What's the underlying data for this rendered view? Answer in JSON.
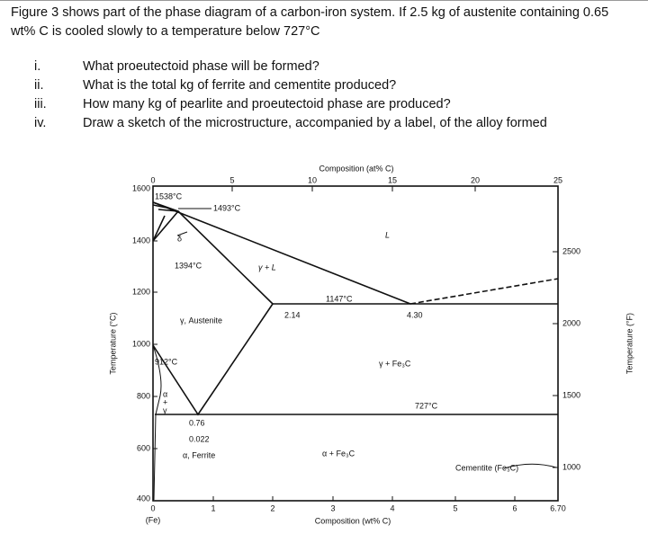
{
  "question": {
    "intro": "Figure 3 shows part of the phase diagram of a carbon-iron system.  If 2.5 kg of austenite containing 0.65 wt% C is cooled slowly to a temperature below 727°C",
    "items": [
      {
        "number": "i.",
        "text": "What proeutectoid phase will be formed?"
      },
      {
        "number": "ii.",
        "text": "What is the total kg of ferrite and cementite produced?"
      },
      {
        "number": "iii.",
        "text": "How many kg of pearlite and proeutectoid phase are produced?"
      },
      {
        "number": "iv.",
        "text": "Draw a sketch of the microstructure, accompanied by a label, of the alloy formed"
      }
    ]
  },
  "figure": {
    "top_axis_title": "Composition (at% C)",
    "top_ticks": [
      "0",
      "5",
      "10",
      "15",
      "20",
      "25"
    ],
    "left_axis_title": "Temperature (°C)",
    "left_ticks": [
      "1600",
      "1400",
      "1200",
      "1000",
      "800",
      "600",
      "400"
    ],
    "right_axis_title": "Temperature (°F)",
    "right_ticks": [
      "2500",
      "2000",
      "1500",
      "1000"
    ],
    "bottom_axis_title": "Composition (wt% C)",
    "bottom_ticks": [
      "0",
      "1",
      "2",
      "3",
      "4",
      "5",
      "6",
      "6.70"
    ],
    "bottom_origin_label": "(Fe)",
    "labels": {
      "melting_point": "1538°C",
      "peritectic": "1493°C",
      "delta": "δ",
      "gamma_transition": "1394°C",
      "gamma_liquid": "γ + L",
      "liquid": "L",
      "eutectic_temp": "1147°C",
      "max_solubility": "2.14",
      "eutectic_comp": "4.30",
      "austenite": "γ, Austenite",
      "alpha_transition": "912°C",
      "gamma_cementite": "γ + Fe₃C",
      "eutectoid_temp": "727°C",
      "small_alpha": "α",
      "small_plus": "+",
      "small_gamma": "γ",
      "eutectoid_comp": "0.76",
      "ferrite_solubility": "0.022",
      "ferrite": "α, Ferrite",
      "alpha_cementite": "α + Fe₃C",
      "cementite": "Cementite (Fe₃C)"
    }
  }
}
